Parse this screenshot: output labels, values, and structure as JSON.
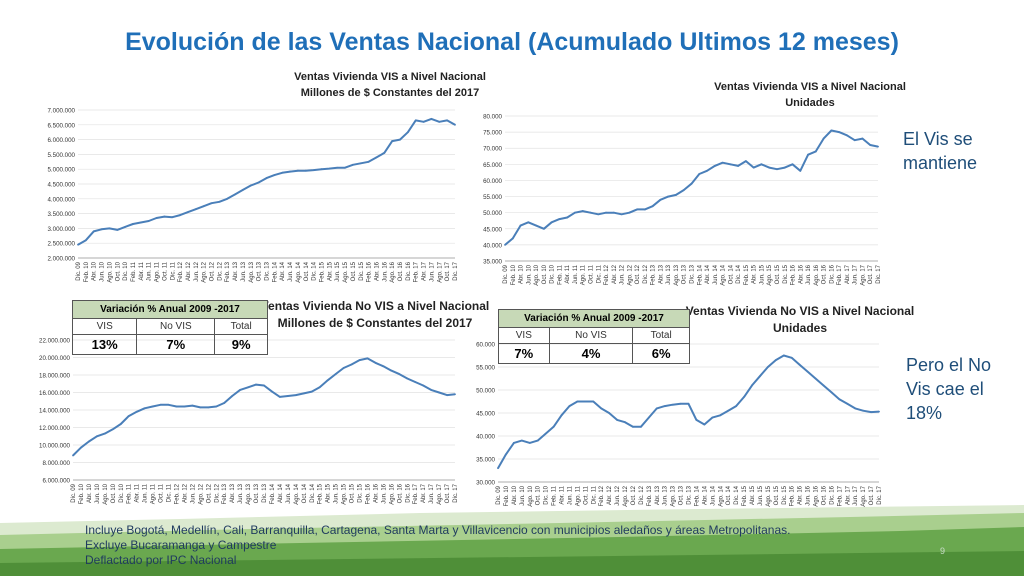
{
  "slide": {
    "title": "Evolución de las Ventas Nacional (Acumulado Ultimos 12 meses)",
    "note_vis": [
      "El Vis se",
      "mantiene"
    ],
    "note_novis": [
      "Pero el No",
      "Vis cae el",
      "18%"
    ],
    "footer": [
      "Incluye Bogotá, Medellín, Cali, Barranquilla, Cartagena, Santa Marta y Villavicencio con municipios aledaños y áreas Metropolitanas.",
      "Excluye Bucaramanga  y  Campestre",
      "Deflactado por IPC Nacional"
    ],
    "page_number": "9"
  },
  "colors": {
    "title": "#1f6fb8",
    "line": "#4a7fb9",
    "note": "#1f4e79",
    "table_header": "#c7d9b7",
    "footer_green": "#6aa84f"
  },
  "tables": [
    {
      "title": "Variación % Anual 2009 -2017",
      "headers": [
        "VIS",
        "No VIS",
        "Total"
      ],
      "values": [
        "13%",
        "7%",
        "9%"
      ]
    },
    {
      "title": "Variación % Anual 2009 -2017",
      "headers": [
        "VIS",
        "No VIS",
        "Total"
      ],
      "values": [
        "7%",
        "4%",
        "6%"
      ]
    }
  ],
  "chart_data": [
    {
      "type": "line",
      "title": [
        "Ventas Vivienda VIS a Nivel Nacional",
        "Millones de $ Constantes del 2017"
      ],
      "ylim": [
        2000000,
        7000000
      ],
      "yticks": [
        "2.000.000",
        "2.500.000",
        "3.000.000",
        "3.500.000",
        "4.000.000",
        "4.500.000",
        "5.000.000",
        "5.500.000",
        "6.000.000",
        "6.500.000",
        "7.000.000"
      ],
      "xticks": [
        "Dic. 09",
        "Feb. 10",
        "Abr. 10",
        "Jun. 10",
        "Ago. 10",
        "Oct. 10",
        "Dic. 10",
        "Feb. 11",
        "Abr. 11",
        "Jun. 11",
        "Ago. 11",
        "Oct. 11",
        "Dic. 11",
        "Feb. 12",
        "Abr. 12",
        "Jun. 12",
        "Ago. 12",
        "Oct. 12",
        "Dic. 12",
        "Feb. 13",
        "Abr. 13",
        "Jun. 13",
        "Ago. 13",
        "Oct. 13",
        "Dic. 13",
        "Feb. 14",
        "Abr. 14",
        "Jun. 14",
        "Ago. 14",
        "Oct. 14",
        "Dic. 14",
        "Feb. 15",
        "Abr. 15",
        "Jun. 15",
        "Ago. 15",
        "Oct. 15",
        "Dic. 15",
        "Feb. 16",
        "Abr. 16",
        "Jun. 16",
        "Ago. 16",
        "Oct. 16",
        "Dic. 16",
        "Feb. 17",
        "Abr. 17",
        "Jun. 17",
        "Ago. 17",
        "Oct. 17",
        "Dic. 17"
      ],
      "values": [
        2450000,
        2600000,
        2900000,
        2970000,
        3000000,
        2950000,
        3050000,
        3150000,
        3200000,
        3250000,
        3350000,
        3400000,
        3380000,
        3450000,
        3550000,
        3650000,
        3750000,
        3850000,
        3900000,
        4000000,
        4150000,
        4300000,
        4450000,
        4550000,
        4700000,
        4800000,
        4880000,
        4920000,
        4950000,
        4950000,
        4970000,
        5000000,
        5020000,
        5050000,
        5050000,
        5150000,
        5200000,
        5250000,
        5400000,
        5550000,
        5950000,
        6000000,
        6250000,
        6650000,
        6600000,
        6700000,
        6600000,
        6650000,
        6500000
      ]
    },
    {
      "type": "line",
      "title": [
        "Ventas Vivienda VIS a Nivel Nacional",
        "Unidades"
      ],
      "ylim": [
        35,
        80
      ],
      "yticks": [
        "35.000",
        "40.000",
        "45.000",
        "50.000",
        "55.000",
        "60.000",
        "65.000",
        "70.000",
        "75.000",
        "80.000"
      ],
      "xticks": [
        "Dic. 09",
        "Feb. 10",
        "Abr. 10",
        "Jun. 10",
        "Ago. 10",
        "Oct. 10",
        "Dic. 10",
        "Feb. 11",
        "Abr. 11",
        "Jun. 11",
        "Ago. 11",
        "Oct. 11",
        "Dic. 11",
        "Feb. 12",
        "Abr. 12",
        "Jun. 12",
        "Ago. 12",
        "Oct. 12",
        "Dic. 12",
        "Feb. 13",
        "Abr. 13",
        "Jun. 13",
        "Ago. 13",
        "Oct. 13",
        "Dic. 13",
        "Feb. 14",
        "Abr. 14",
        "Jun. 14",
        "Ago. 14",
        "Oct. 14",
        "Dic. 14",
        "Feb. 15",
        "Abr. 15",
        "Jun. 15",
        "Ago. 15",
        "Oct. 15",
        "Dic. 15",
        "Feb. 16",
        "Abr. 16",
        "Jun. 16",
        "Ago. 16",
        "Oct. 16",
        "Dic. 16",
        "Feb. 17",
        "Abr. 17",
        "Jun. 17",
        "Ago. 17",
        "Oct. 17",
        "Dic. 17"
      ],
      "values": [
        40,
        42,
        46,
        47,
        46,
        45,
        47,
        48,
        48.5,
        50,
        50.5,
        50,
        49.5,
        50,
        50,
        49.5,
        50,
        51,
        51,
        52,
        54,
        55,
        55.5,
        57,
        59,
        62,
        63,
        64.5,
        65.5,
        65,
        64.5,
        66,
        64,
        65,
        64,
        63.5,
        64,
        65,
        63,
        68,
        69,
        73,
        75.5,
        75,
        74,
        72.5,
        73,
        71,
        70.5
      ]
    },
    {
      "type": "line",
      "title": [
        "Ventas Vivienda No VIS a Nivel Nacional",
        "Millones de $ Constantes del 2017"
      ],
      "ylim": [
        6000000,
        22000000
      ],
      "yticks": [
        "6.000.000",
        "8.000.000",
        "10.000.000",
        "12.000.000",
        "14.000.000",
        "16.000.000",
        "18.000.000",
        "20.000.000",
        "22.000.000"
      ],
      "xticks": [
        "Dic. 09",
        "Feb. 10",
        "Abr. 10",
        "Jun. 10",
        "Ago. 10",
        "Oct. 10",
        "Dic. 10",
        "Feb. 11",
        "Abr. 11",
        "Jun. 11",
        "Ago. 11",
        "Oct. 11",
        "Dic. 11",
        "Feb. 12",
        "Abr. 12",
        "Jun. 12",
        "Ago. 12",
        "Oct. 12",
        "Dic. 12",
        "Feb. 13",
        "Abr. 13",
        "Jun. 13",
        "Ago. 13",
        "Oct. 13",
        "Dic. 13",
        "Feb. 14",
        "Abr. 14",
        "Jun. 14",
        "Ago. 14",
        "Oct. 14",
        "Dic. 14",
        "Feb. 15",
        "Abr. 15",
        "Jun. 15",
        "Ago. 15",
        "Oct. 15",
        "Dic. 15",
        "Feb. 16",
        "Abr. 16",
        "Jun. 16",
        "Ago. 16",
        "Oct. 16",
        "Dic. 16",
        "Feb. 17",
        "Abr. 17",
        "Jun. 17",
        "Ago. 17",
        "Oct. 17",
        "Dic. 17"
      ],
      "values": [
        8800000,
        9700000,
        10400000,
        11000000,
        11300000,
        11800000,
        12400000,
        13300000,
        13800000,
        14200000,
        14400000,
        14600000,
        14600000,
        14400000,
        14400000,
        14500000,
        14300000,
        14300000,
        14400000,
        14800000,
        15600000,
        16300000,
        16600000,
        16900000,
        16800000,
        16100000,
        15500000,
        15600000,
        15700000,
        15900000,
        16100000,
        16600000,
        17400000,
        18100000,
        18800000,
        19200000,
        19700000,
        19900000,
        19400000,
        19000000,
        18500000,
        18100000,
        17600000,
        17200000,
        16800000,
        16300000,
        16000000,
        15700000,
        15800000
      ]
    },
    {
      "type": "line",
      "title": [
        "Ventas Vivienda No VIS a Nivel Nacional",
        "Unidades"
      ],
      "ylim": [
        30,
        60
      ],
      "yticks": [
        "30.000",
        "35.000",
        "40.000",
        "45.000",
        "50.000",
        "55.000",
        "60.000"
      ],
      "xticks": [
        "Dic. 09",
        "Feb. 10",
        "Abr. 10",
        "Jun. 10",
        "Ago. 10",
        "Oct. 10",
        "Dic. 10",
        "Feb. 11",
        "Abr. 11",
        "Jun. 11",
        "Ago. 11",
        "Oct. 11",
        "Dic. 11",
        "Feb. 12",
        "Abr. 12",
        "Jun. 12",
        "Ago. 12",
        "Oct. 12",
        "Dic. 12",
        "Feb. 13",
        "Abr. 13",
        "Jun. 13",
        "Ago. 13",
        "Oct. 13",
        "Dic. 13",
        "Feb. 14",
        "Abr. 14",
        "Jun. 14",
        "Ago. 14",
        "Oct. 14",
        "Dic. 14",
        "Feb. 15",
        "Abr. 15",
        "Jun. 15",
        "Ago. 15",
        "Oct. 15",
        "Dic. 15",
        "Feb. 16",
        "Abr. 16",
        "Jun. 16",
        "Ago. 16",
        "Oct. 16",
        "Dic. 16",
        "Feb. 17",
        "Abr. 17",
        "Jun. 17",
        "Ago. 17",
        "Oct. 17",
        "Dic. 17"
      ],
      "values": [
        33,
        36,
        38.5,
        39,
        38.5,
        39,
        40.5,
        42,
        44.5,
        46.5,
        47.5,
        47.5,
        47.5,
        46,
        45,
        43.5,
        43,
        42,
        42,
        44,
        46,
        46.5,
        46.8,
        47,
        47,
        43.5,
        42.5,
        44,
        44.5,
        45.5,
        46.5,
        48.5,
        51,
        53,
        55,
        56.5,
        57.5,
        57,
        55.5,
        54,
        52.5,
        51,
        49.5,
        48,
        47,
        46,
        45.5,
        45.2,
        45.3
      ]
    }
  ]
}
